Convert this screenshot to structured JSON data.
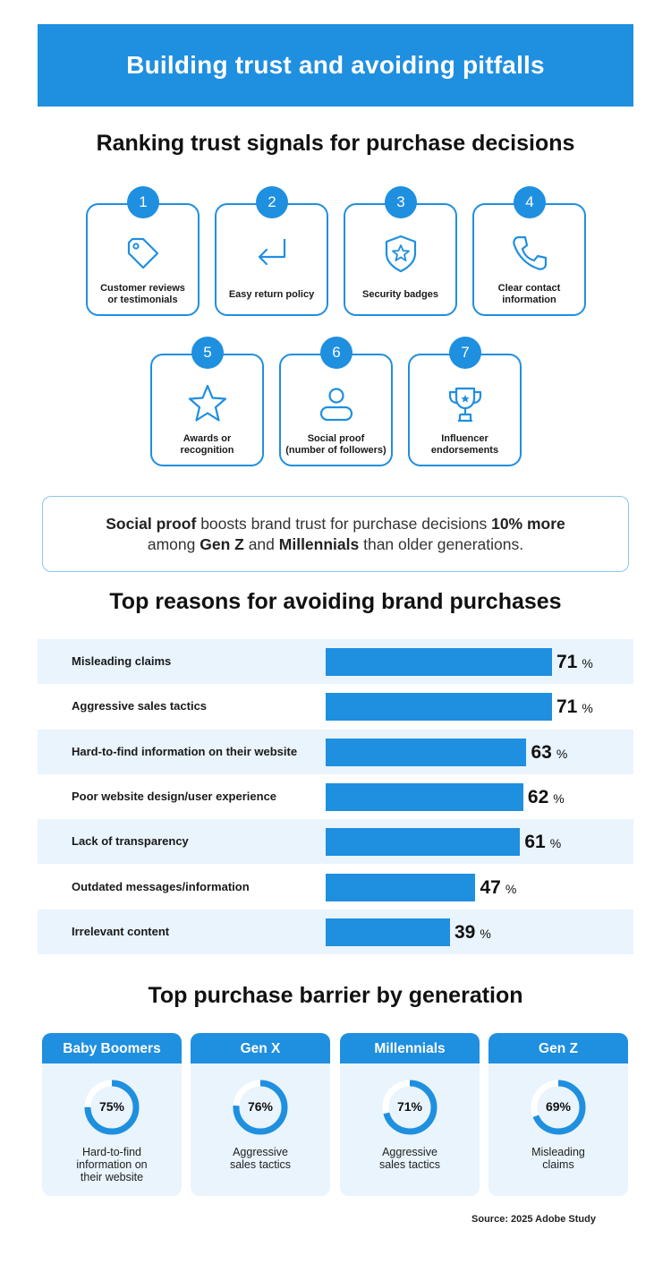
{
  "title": "Building trust and avoiding pitfalls",
  "signals": {
    "heading": "Ranking trust signals for purchase decisions",
    "items": [
      {
        "rank": "1",
        "label": "Customer reviews\nor testimonials",
        "icon": "tag-icon"
      },
      {
        "rank": "2",
        "label": "Easy return policy",
        "icon": "return-arrow-icon"
      },
      {
        "rank": "3",
        "label": "Security badges",
        "icon": "shield-star-icon"
      },
      {
        "rank": "4",
        "label": "Clear contact\ninformation",
        "icon": "phone-icon"
      },
      {
        "rank": "5",
        "label": "Awards or\nrecognition",
        "icon": "star-icon"
      },
      {
        "rank": "6",
        "label": "Social proof\n(number of followers)",
        "icon": "user-icon"
      },
      {
        "rank": "7",
        "label": "Influencer\nendorsements",
        "icon": "trophy-icon"
      }
    ]
  },
  "callout": {
    "t1": "Social proof",
    "t2": " boosts brand trust for purchase decisions ",
    "t3": "10% more",
    "t4": "among ",
    "t5": "Gen Z",
    "t6": " and ",
    "t7": "Millennials",
    "t8": " than older generations."
  },
  "chart_data": [
    {
      "type": "bar",
      "orientation": "horizontal",
      "title": "Top reasons for avoiding brand purchases",
      "unit": "%",
      "categories": [
        "Misleading claims",
        "Aggressive sales tactics",
        "Hard-to-find information on their website",
        "Poor website design/user experience",
        "Lack of transparency",
        "Outdated messages/information",
        "Irrelevant content"
      ],
      "values": [
        71,
        71,
        63,
        62,
        61,
        47,
        39
      ],
      "color": "#1f8fe0"
    },
    {
      "type": "pie",
      "title": "Top purchase barrier by generation",
      "style": "donut-ring",
      "items": [
        {
          "generation": "Baby Boomers",
          "value": 75,
          "label": "75%",
          "barrier": "Hard-to-find\ninformation on\ntheir website"
        },
        {
          "generation": "Gen X",
          "value": 76,
          "label": "76%",
          "barrier": "Aggressive\nsales tactics"
        },
        {
          "generation": "Millennials",
          "value": 71,
          "label": "71%",
          "barrier": "Aggressive\nsales tactics"
        },
        {
          "generation": "Gen Z",
          "value": 69,
          "label": "69%",
          "barrier": "Misleading\nclaims"
        }
      ],
      "color": "#1f8fe0"
    }
  ],
  "source": "Source: 2025 Adobe Study",
  "colors": {
    "accent": "#1f8fe0",
    "light": "#e9f4fd"
  }
}
